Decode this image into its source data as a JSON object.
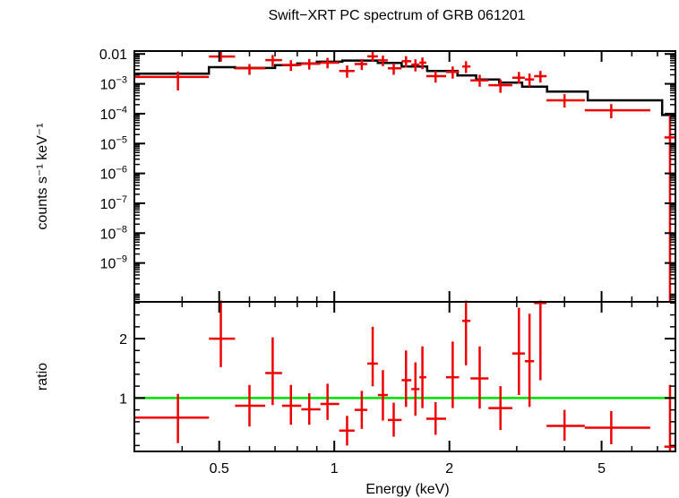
{
  "chart_data": {
    "type": "scatter",
    "title": "Swift−XRT PC spectrum of GRB 061201",
    "xlabel": "Energy (keV)",
    "x_scale": "log",
    "xlim": [
      0.3,
      7.8
    ],
    "x_ticks": [
      {
        "value": 0.5,
        "label": "0.5"
      },
      {
        "value": 1,
        "label": "1"
      },
      {
        "value": 2,
        "label": "2"
      },
      {
        "value": 5,
        "label": "5"
      }
    ],
    "colors": {
      "data": "#ee0000",
      "model": "#000000",
      "unity": "#00dd00",
      "axes": "#000000"
    },
    "panels": [
      {
        "name": "spectrum",
        "ylabel": "counts s⁻¹ keV⁻¹",
        "y_scale": "log",
        "ylim": [
          5e-11,
          0.0125
        ],
        "y_ticks": [
          {
            "value": 0.01,
            "label": "0.01"
          },
          {
            "value": 0.001,
            "base": "10",
            "exp": "−3"
          },
          {
            "value": 0.0001,
            "base": "10",
            "exp": "−4"
          },
          {
            "value": 1e-05,
            "base": "10",
            "exp": "−5"
          },
          {
            "value": 1e-06,
            "base": "10",
            "exp": "−6"
          },
          {
            "value": 1e-07,
            "base": "10",
            "exp": "−7"
          },
          {
            "value": 1e-08,
            "base": "10",
            "exp": "−8"
          },
          {
            "value": 1e-09,
            "base": "10",
            "exp": "−9"
          }
        ],
        "model_steps": [
          {
            "x0": 0.3,
            "x1": 0.47,
            "y": 0.0022
          },
          {
            "x0": 0.47,
            "x1": 0.55,
            "y": 0.0036
          },
          {
            "x0": 0.55,
            "x1": 0.7,
            "y": 0.0034
          },
          {
            "x0": 0.7,
            "x1": 0.8,
            "y": 0.0042
          },
          {
            "x0": 0.8,
            "x1": 0.9,
            "y": 0.0048
          },
          {
            "x0": 0.9,
            "x1": 1.05,
            "y": 0.0055
          },
          {
            "x0": 1.05,
            "x1": 1.3,
            "y": 0.006
          },
          {
            "x0": 1.3,
            "x1": 1.5,
            "y": 0.005
          },
          {
            "x0": 1.5,
            "x1": 1.75,
            "y": 0.0038
          },
          {
            "x0": 1.75,
            "x1": 2.1,
            "y": 0.0027
          },
          {
            "x0": 2.1,
            "x1": 2.35,
            "y": 0.0019
          },
          {
            "x0": 2.35,
            "x1": 2.7,
            "y": 0.0014
          },
          {
            "x0": 2.7,
            "x1": 3.1,
            "y": 0.0011
          },
          {
            "x0": 3.1,
            "x1": 3.6,
            "y": 0.0008
          },
          {
            "x0": 3.6,
            "x1": 4.6,
            "y": 0.00055
          },
          {
            "x0": 4.6,
            "x1": 7.2,
            "y": 0.00028
          },
          {
            "x0": 7.2,
            "x1": 7.8,
            "y": 9e-05
          }
        ],
        "points": [
          {
            "x": 0.39,
            "xerr": [
              0.3,
              0.47
            ],
            "y": 0.0017,
            "yerr": [
              0.0006,
              0.0026
            ]
          },
          {
            "x": 0.505,
            "xerr": [
              0.47,
              0.55
            ],
            "y": 0.0082,
            "yerr": [
              0.0055,
              0.012
            ]
          },
          {
            "x": 0.6,
            "xerr": [
              0.55,
              0.66
            ],
            "y": 0.0033,
            "yerr": [
              0.002,
              0.0046
            ]
          },
          {
            "x": 0.69,
            "xerr": [
              0.66,
              0.73
            ],
            "y": 0.0062,
            "yerr": [
              0.0038,
              0.0092
            ]
          },
          {
            "x": 0.77,
            "xerr": [
              0.73,
              0.82
            ],
            "y": 0.0043,
            "yerr": [
              0.0027,
              0.0062
            ]
          },
          {
            "x": 0.86,
            "xerr": [
              0.82,
              0.92
            ],
            "y": 0.0047,
            "yerr": [
              0.003,
              0.0068
            ]
          },
          {
            "x": 0.96,
            "xerr": [
              0.92,
              1.03
            ],
            "y": 0.0051,
            "yerr": [
              0.0033,
              0.0074
            ]
          },
          {
            "x": 1.08,
            "xerr": [
              1.03,
              1.13
            ],
            "y": 0.0027,
            "yerr": [
              0.0016,
              0.0041
            ]
          },
          {
            "x": 1.18,
            "xerr": [
              1.13,
              1.22
            ],
            "y": 0.0046,
            "yerr": [
              0.0029,
              0.0067
            ]
          },
          {
            "x": 1.26,
            "xerr": [
              1.22,
              1.3
            ],
            "y": 0.0083,
            "yerr": [
              0.0055,
              0.0121
            ]
          },
          {
            "x": 1.34,
            "xerr": [
              1.3,
              1.38
            ],
            "y": 0.0061,
            "yerr": [
              0.0039,
              0.0088
            ]
          },
          {
            "x": 1.43,
            "xerr": [
              1.38,
              1.5
            ],
            "y": 0.0033,
            "yerr": [
              0.002,
              0.0049
            ]
          },
          {
            "x": 1.54,
            "xerr": [
              1.5,
              1.59
            ],
            "y": 0.0057,
            "yerr": [
              0.0035,
              0.0084
            ]
          },
          {
            "x": 1.63,
            "xerr": [
              1.59,
              1.67
            ],
            "y": 0.0044,
            "yerr": [
              0.0026,
              0.0066
            ]
          },
          {
            "x": 1.7,
            "xerr": [
              1.67,
              1.74
            ],
            "y": 0.0051,
            "yerr": [
              0.0031,
              0.0076
            ]
          },
          {
            "x": 1.84,
            "xerr": [
              1.74,
              1.96
            ],
            "y": 0.0018,
            "yerr": [
              0.0011,
              0.0027
            ]
          },
          {
            "x": 2.04,
            "xerr": [
              1.96,
              2.12
            ],
            "y": 0.0025,
            "yerr": [
              0.0015,
              0.0038
            ]
          },
          {
            "x": 2.21,
            "xerr": [
              2.16,
              2.27
            ],
            "y": 0.0038,
            "yerr": [
              0.0023,
              0.0057
            ]
          },
          {
            "x": 2.4,
            "xerr": [
              2.27,
              2.53
            ],
            "y": 0.0013,
            "yerr": [
              0.0008,
              0.002
            ]
          },
          {
            "x": 2.72,
            "xerr": [
              2.53,
              2.92
            ],
            "y": 0.0009,
            "yerr": [
              0.0005,
              0.0014
            ]
          },
          {
            "x": 3.04,
            "xerr": [
              2.92,
              3.15
            ],
            "y": 0.0016,
            "yerr": [
              0.001,
              0.0025
            ]
          },
          {
            "x": 3.24,
            "xerr": [
              3.15,
              3.33
            ],
            "y": 0.0014,
            "yerr": [
              0.0008,
              0.0022
            ]
          },
          {
            "x": 3.46,
            "xerr": [
              3.33,
              3.59
            ],
            "y": 0.0018,
            "yerr": [
              0.0011,
              0.0027
            ]
          },
          {
            "x": 4.0,
            "xerr": [
              3.59,
              4.52
            ],
            "y": 0.00028,
            "yerr": [
              0.00016,
              0.00045
            ]
          },
          {
            "x": 5.3,
            "xerr": [
              4.52,
              6.7
            ],
            "y": 0.00013,
            "yerr": [
              7e-05,
              0.00021
            ]
          },
          {
            "x": 7.55,
            "xerr": [
              7.3,
              7.8
            ],
            "y": 1.6e-05,
            "yerr": [
              5e-11,
              9e-05
            ]
          }
        ]
      },
      {
        "name": "ratio",
        "ylabel": "ratio",
        "y_scale": "linear",
        "ylim": [
          0.1,
          2.62
        ],
        "y_ticks": [
          {
            "value": 1,
            "label": "1"
          },
          {
            "value": 2,
            "label": "2"
          }
        ],
        "reference_line": 1,
        "points": [
          {
            "x": 0.39,
            "xerr": [
              0.3,
              0.47
            ],
            "y": 0.67,
            "yerr": [
              0.24,
              1.07
            ]
          },
          {
            "x": 0.505,
            "xerr": [
              0.47,
              0.55
            ],
            "y": 2.0,
            "yerr": [
              1.52,
              2.64
            ]
          },
          {
            "x": 0.6,
            "xerr": [
              0.55,
              0.66
            ],
            "y": 0.87,
            "yerr": [
              0.52,
              1.22
            ]
          },
          {
            "x": 0.69,
            "xerr": [
              0.66,
              0.73
            ],
            "y": 1.42,
            "yerr": [
              0.88,
              2.02
            ]
          },
          {
            "x": 0.77,
            "xerr": [
              0.73,
              0.82
            ],
            "y": 0.87,
            "yerr": [
              0.55,
              1.22
            ]
          },
          {
            "x": 0.86,
            "xerr": [
              0.82,
              0.92
            ],
            "y": 0.81,
            "yerr": [
              0.55,
              1.08
            ]
          },
          {
            "x": 0.96,
            "xerr": [
              0.92,
              1.03
            ],
            "y": 0.9,
            "yerr": [
              0.63,
              1.24
            ]
          },
          {
            "x": 1.08,
            "xerr": [
              1.03,
              1.13
            ],
            "y": 0.45,
            "yerr": [
              0.2,
              0.7
            ]
          },
          {
            "x": 1.18,
            "xerr": [
              1.13,
              1.22
            ],
            "y": 0.8,
            "yerr": [
              0.48,
              1.12
            ]
          },
          {
            "x": 1.26,
            "xerr": [
              1.22,
              1.3
            ],
            "y": 1.58,
            "yerr": [
              1.2,
              2.2
            ]
          },
          {
            "x": 1.34,
            "xerr": [
              1.3,
              1.38
            ],
            "y": 1.05,
            "yerr": [
              0.62,
              1.47
            ]
          },
          {
            "x": 1.43,
            "xerr": [
              1.38,
              1.5
            ],
            "y": 0.63,
            "yerr": [
              0.35,
              0.92
            ]
          },
          {
            "x": 1.54,
            "xerr": [
              1.5,
              1.59
            ],
            "y": 1.3,
            "yerr": [
              0.85,
              1.8
            ]
          },
          {
            "x": 1.63,
            "xerr": [
              1.59,
              1.67
            ],
            "y": 1.15,
            "yerr": [
              0.7,
              1.6
            ]
          },
          {
            "x": 1.7,
            "xerr": [
              1.67,
              1.74
            ],
            "y": 1.35,
            "yerr": [
              0.83,
              1.87
            ]
          },
          {
            "x": 1.84,
            "xerr": [
              1.74,
              1.96
            ],
            "y": 0.65,
            "yerr": [
              0.38,
              0.93
            ]
          },
          {
            "x": 2.04,
            "xerr": [
              1.96,
              2.12
            ],
            "y": 1.35,
            "yerr": [
              0.83,
              1.95
            ]
          },
          {
            "x": 2.21,
            "xerr": [
              2.16,
              2.27
            ],
            "y": 2.3,
            "yerr": [
              1.55,
              2.64
            ]
          },
          {
            "x": 2.4,
            "xerr": [
              2.27,
              2.53
            ],
            "y": 1.33,
            "yerr": [
              0.82,
              1.87
            ]
          },
          {
            "x": 2.72,
            "xerr": [
              2.53,
              2.92
            ],
            "y": 0.83,
            "yerr": [
              0.46,
              1.2
            ]
          },
          {
            "x": 3.04,
            "xerr": [
              2.92,
              3.15
            ],
            "y": 1.75,
            "yerr": [
              1.05,
              2.52
            ]
          },
          {
            "x": 3.24,
            "xerr": [
              3.15,
              3.33
            ],
            "y": 1.62,
            "yerr": [
              0.85,
              2.42
            ]
          },
          {
            "x": 3.46,
            "xerr": [
              3.33,
              3.59
            ],
            "y": 2.6,
            "yerr": [
              1.3,
              2.64
            ]
          },
          {
            "x": 4.0,
            "xerr": [
              3.59,
              4.52
            ],
            "y": 0.53,
            "yerr": [
              0.28,
              0.8
            ]
          },
          {
            "x": 5.3,
            "xerr": [
              4.52,
              6.7
            ],
            "y": 0.5,
            "yerr": [
              0.22,
              0.78
            ]
          },
          {
            "x": 7.55,
            "xerr": [
              7.3,
              7.8
            ],
            "y": 0.18,
            "yerr": [
              0.1,
              1.22
            ]
          }
        ]
      }
    ]
  }
}
